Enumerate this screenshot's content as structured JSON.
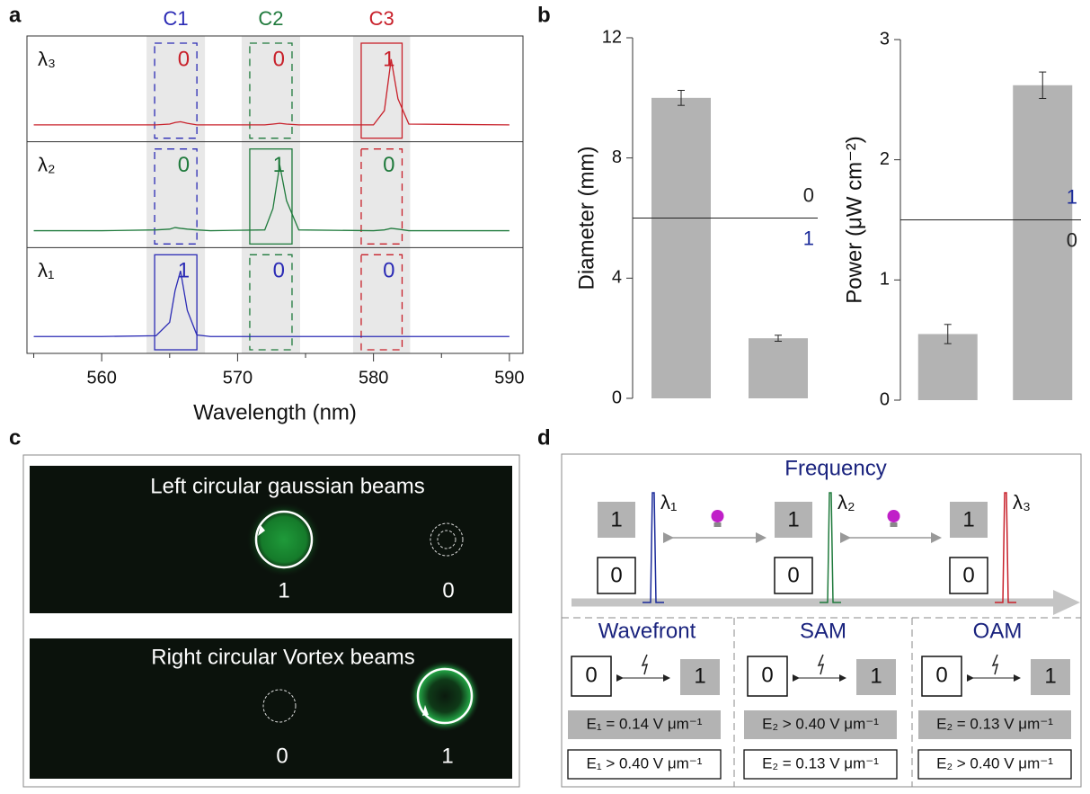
{
  "panel_labels": [
    "a",
    "b",
    "c",
    "d"
  ],
  "chart_data": [
    {
      "type": "line",
      "xlabel": "Wavelength (nm)",
      "xlim": [
        554.5,
        591
      ],
      "xticks": [
        560,
        570,
        580,
        590
      ],
      "xminorticks": [
        555,
        565,
        575,
        585
      ],
      "ylim": [
        0,
        1
      ],
      "x": [
        555,
        560,
        564,
        565,
        565.4,
        565.8,
        566.3,
        567,
        568,
        572,
        572.6,
        573.1,
        573.6,
        574.5,
        580,
        580.8,
        581.3,
        581.8,
        582.6,
        590
      ],
      "channels": [
        {
          "name": "C1",
          "color": "#2b2bb5",
          "range": [
            563.3,
            567.6
          ]
        },
        {
          "name": "C2",
          "color": "#1f7a3c",
          "range": [
            570.3,
            574.6
          ]
        },
        {
          "name": "C3",
          "color": "#c8202a",
          "range": [
            578.5,
            582.7
          ]
        }
      ],
      "rows": [
        {
          "label": "λ₃",
          "active": 2,
          "states": [
            "0",
            "0",
            "1"
          ],
          "series": {
            "color": "#c8202a",
            "values": [
              0.02,
              0.02,
              0.02,
              0.03,
              0.05,
              0.06,
              0.04,
              0.02,
              0.02,
              0.02,
              0.03,
              0.04,
              0.03,
              0.02,
              0.02,
              0.2,
              0.85,
              0.35,
              0.03,
              0.02
            ]
          }
        },
        {
          "label": "λ₂",
          "active": 1,
          "states": [
            "0",
            "1",
            "0"
          ],
          "series": {
            "color": "#1f7a3c",
            "values": [
              0.02,
              0.02,
              0.03,
              0.04,
              0.06,
              0.05,
              0.04,
              0.03,
              0.02,
              0.03,
              0.3,
              0.85,
              0.4,
              0.03,
              0.02,
              0.03,
              0.05,
              0.04,
              0.02,
              0.02
            ]
          }
        },
        {
          "label": "λ₁",
          "active": 0,
          "states": [
            "1",
            "0",
            "0"
          ],
          "series": {
            "color": "#2b2bb5",
            "values": [
              0.02,
              0.02,
              0.03,
              0.2,
              0.6,
              0.85,
              0.35,
              0.04,
              0.02,
              0.02,
              0.02,
              0.02,
              0.02,
              0.02,
              0.02,
              0.02,
              0.02,
              0.02,
              0.02,
              0.02
            ]
          }
        }
      ]
    },
    {
      "type": "bar",
      "ylabel": "Diameter (mm)",
      "categories": [
        null,
        null
      ],
      "values": [
        10,
        2
      ],
      "errors": [
        0.25,
        0.1
      ],
      "color": "#b3b3b3",
      "ylim": [
        0,
        12
      ],
      "yticks": [
        0,
        4,
        8,
        12
      ],
      "threshold": {
        "value": 6,
        "above": "0",
        "below": "1",
        "above_color": "#222222",
        "below_color": "#1a2a9a"
      }
    },
    {
      "type": "bar",
      "ylabel": "Power (μW cm⁻²)",
      "categories": [
        null,
        null
      ],
      "values": [
        0.55,
        2.62
      ],
      "errors": [
        0.08,
        0.11
      ],
      "color": "#b3b3b3",
      "ylim": [
        0,
        3
      ],
      "yticks": [
        0,
        1,
        2,
        3
      ],
      "threshold": {
        "value": 1.5,
        "above": "1",
        "below": "0",
        "above_color": "#1a2a9a",
        "below_color": "#222222"
      }
    }
  ],
  "panel_c": {
    "beams": [
      {
        "title": "Left circular gaussian beams",
        "spots": [
          "1",
          "0"
        ]
      },
      {
        "title": "Right circular Vortex beams",
        "spots": [
          "0",
          "1"
        ]
      }
    ]
  },
  "panel_d": {
    "title": "Frequency",
    "levels": [
      {
        "one": "1",
        "zero": "0",
        "lambda": "λ₁",
        "color": "#1a2a9a"
      },
      {
        "one": "1",
        "zero": "0",
        "lambda": "λ₂",
        "color": "#1f7a3c"
      },
      {
        "one": "1",
        "zero": "0",
        "lambda": "λ₃",
        "color": "#c8202a"
      }
    ],
    "modes": [
      {
        "name": "Wavefront",
        "zero": "0",
        "one": "1",
        "e_one": "E₁ = 0.14 V μm⁻¹",
        "e_zero": "E₁ > 0.40 V μm⁻¹"
      },
      {
        "name": "SAM",
        "zero": "0",
        "one": "1",
        "e_one": "E₂ > 0.40 V μm⁻¹",
        "e_zero": "E₂ = 0.13 V μm⁻¹"
      },
      {
        "name": "OAM",
        "zero": "0",
        "one": "1",
        "e_one": "E₂ = 0.13 V μm⁻¹",
        "e_zero": "E₂ > 0.40 V μm⁻¹"
      }
    ]
  }
}
